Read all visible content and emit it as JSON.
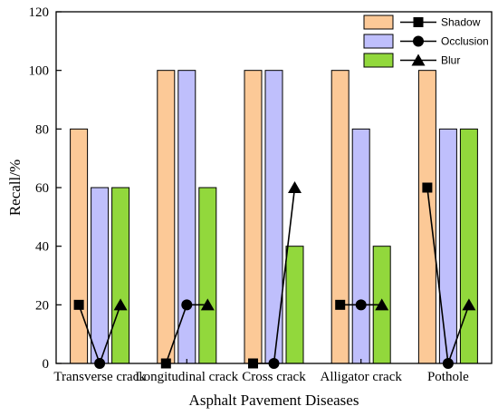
{
  "chart_data": {
    "type": "bar",
    "categories": [
      "Transverse crack",
      "Longitudinal crack",
      "Cross crack",
      "Alligator crack",
      "Pothole"
    ],
    "xlabel": "Asphalt Pavement Diseases",
    "ylabel": "Recall/%",
    "ylim": [
      0,
      120
    ],
    "yticks": [
      0,
      20,
      40,
      60,
      80,
      100,
      120
    ],
    "legend_position": "top-right",
    "grid": false,
    "series": [
      {
        "name": "Shadow",
        "values": [
          80,
          100,
          100,
          100,
          100
        ],
        "color": "#FCC997"
      },
      {
        "name": "Occlusion",
        "values": [
          60,
          100,
          100,
          80,
          80
        ],
        "color": "#BFBFFC"
      },
      {
        "name": "Blur",
        "values": [
          60,
          60,
          40,
          40,
          80
        ],
        "color": "#92D83C"
      }
    ],
    "line_series": [
      {
        "name": "Shadow",
        "marker": "square",
        "values": [
          20,
          0,
          0,
          20,
          60
        ]
      },
      {
        "name": "Occlusion",
        "marker": "circle",
        "values": [
          0,
          20,
          0,
          20,
          0
        ]
      },
      {
        "name": "Blur",
        "marker": "triangle",
        "values": [
          20,
          20,
          60,
          20,
          20
        ]
      }
    ]
  }
}
